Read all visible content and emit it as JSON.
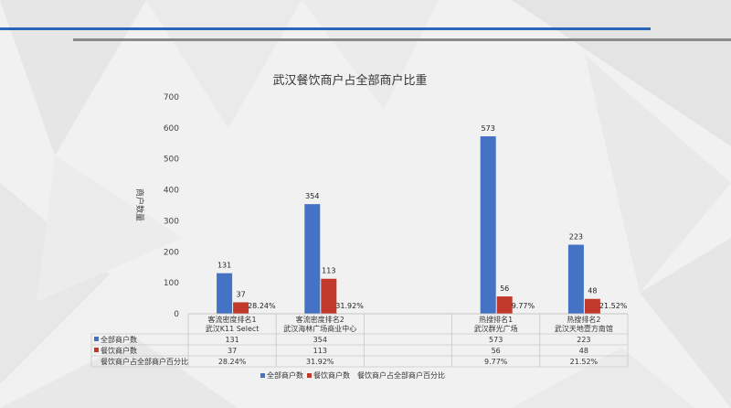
{
  "chart_data": {
    "type": "bar",
    "title": "武汉餐饮商户占全部商户比重",
    "ylabel": "商户数量",
    "ylim": [
      0,
      700
    ],
    "yticks": [
      0,
      100,
      200,
      300,
      400,
      500,
      600,
      700
    ],
    "categories": [
      [
        "客流密度排名1",
        "武汉K11 Select"
      ],
      [
        "客流密度排名2",
        "武汉海林广场商业中心"
      ],
      [
        "",
        ""
      ],
      [
        "热搜排名1",
        "武汉群光广场"
      ],
      [
        "热搜排名2",
        "武汉天地壹方南馆"
      ]
    ],
    "series": [
      {
        "name": "全部商户数",
        "color": "#4472c4",
        "values": [
          131,
          354,
          null,
          573,
          223
        ]
      },
      {
        "name": "餐饮商户数",
        "color": "#c0392b",
        "values": [
          37,
          113,
          null,
          56,
          48
        ]
      }
    ],
    "percent_series": {
      "name": "餐饮商户占全部商户百分比",
      "values": [
        "28.24%",
        "31.92%",
        "",
        "9.77%",
        "21.52%"
      ]
    },
    "legend": "bottom"
  }
}
